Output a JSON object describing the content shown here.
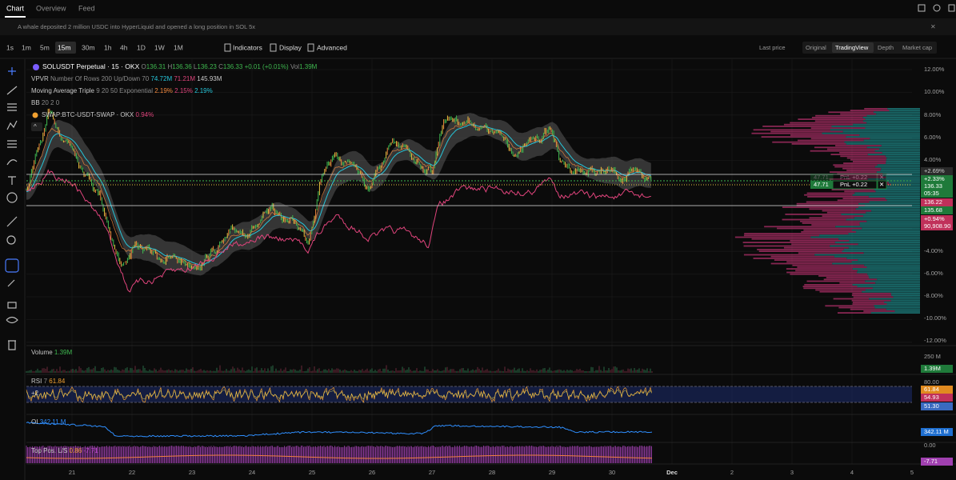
{
  "tabs": [
    "Chart",
    "Overview",
    "Feed"
  ],
  "news": "A whale deposited 2 million USDC into HyperLiquid and opened a long position in SOL 5x",
  "toolbar": {
    "intervals": [
      "1s",
      "1m",
      "5m",
      "15m",
      "30m",
      "1h",
      "4h",
      "1D",
      "1W",
      "1M"
    ],
    "tools": [
      "Indicators",
      "Display",
      "Advanced"
    ],
    "price_source": "Last price",
    "views": [
      "Original",
      "TradingView",
      "Depth",
      "Market cap"
    ]
  },
  "legend": {
    "symbol": "SOLUSDT Perpetual · 15 · OKX",
    "open_label": "O",
    "open": "136.31",
    "high_label": "H",
    "high": "136.36",
    "low_label": "L",
    "low": "136.23",
    "close_label": "C",
    "close": "136.33",
    "change": "+0.01 (+0.01%)",
    "vol_label": "Vol",
    "vol": "1.39M",
    "vpvr": {
      "name": "VPVR",
      "params": "Number Of Rows 200 Up/Down 70",
      "up": "74.72M",
      "down": "71.21M",
      "total": "145.93M"
    },
    "ma": {
      "name": "Moving Average Triple",
      "params": "9 20 50 Exponential",
      "v1": "2.19%",
      "v2": "2.15%",
      "v3": "2.19%"
    },
    "bb": {
      "name": "BB",
      "params": "20 2 0"
    },
    "compare": {
      "name": "SWAP:BTC-USDT-SWAP · OKX",
      "value": "0.94%"
    }
  },
  "price_axis": {
    "ticks": [
      "12.00%",
      "10.00%",
      "8.00%",
      "6.00%",
      "4.00%",
      "-4.00%",
      "-6.00%",
      "-8.00%",
      "-10.00%",
      "-12.00%"
    ],
    "labels": {
      "high_pct": "+2.69%",
      "last_pct": "+2.33%",
      "last_price": "136.33",
      "countdown": "05:35",
      "bid": "136.22",
      "ask": "135.68",
      "compare_pct": "+0.94%",
      "compare_price": "90,908.90"
    }
  },
  "position": {
    "size": "47.71",
    "pnl": "PnL +0.22"
  },
  "volume": {
    "title": "Volume",
    "value": "1.39M",
    "axis": "250 M",
    "axis_label": "1.39M"
  },
  "rsi": {
    "title": "RSI",
    "period": "7",
    "value": "61.84",
    "collapsed": "+2",
    "axis": "80.00",
    "labels": [
      "61.84",
      "54.93",
      "51.30"
    ]
  },
  "oi": {
    "title": "OI",
    "value": "342.11 M",
    "axis_label": "342.11 M"
  },
  "top_ls": {
    "title": "Top Pos. L/S",
    "value1": "0.86",
    "value2": "-7.71",
    "axis": "0.00",
    "axis_label": "-7.71"
  },
  "x_axis": [
    "21",
    "22",
    "23",
    "24",
    "25",
    "26",
    "27",
    "28",
    "29",
    "30",
    "Dec",
    "2",
    "3",
    "4",
    "5"
  ]
}
